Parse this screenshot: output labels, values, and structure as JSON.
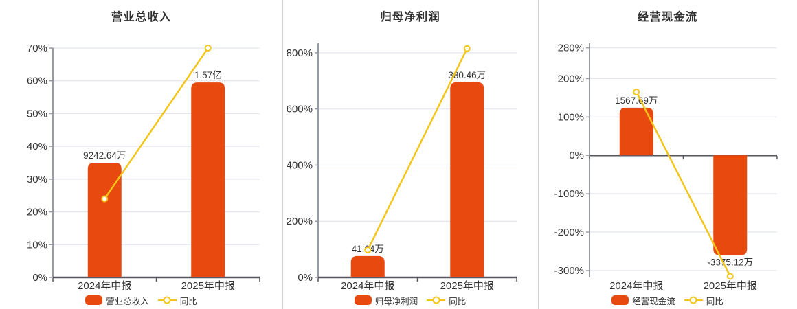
{
  "colors": {
    "bar": "#e8490f",
    "line": "#f3c51a",
    "grid": "#e2e6f1",
    "axis_light": "#9a9ca5",
    "axis_dark": "#55565e",
    "text": "#333333",
    "divider": "#d0d0d0",
    "marker_fill": "#ffffff"
  },
  "chart_data": [
    {
      "type": "bar+line",
      "title": "营业总收入",
      "x_axis": {
        "categories": [
          "2024年中报",
          "2025年中报"
        ]
      },
      "y_axis": {
        "unit": "%",
        "scale_min": 0,
        "scale_max": 70,
        "ticks": [
          {
            "v": 70,
            "label": "70%"
          },
          {
            "v": 60,
            "label": "60%"
          },
          {
            "v": 50,
            "label": "50%"
          },
          {
            "v": 40,
            "label": "40%"
          },
          {
            "v": 30,
            "label": "30%"
          },
          {
            "v": 20,
            "label": "20%"
          },
          {
            "v": 10,
            "label": "10%"
          },
          {
            "v": 0,
            "label": "0%"
          }
        ]
      },
      "bar_series": {
        "name": "营业总收入",
        "labels": [
          "9242.64万",
          "1.57亿"
        ],
        "heights_pct": [
          35,
          59.5
        ]
      },
      "line_series": {
        "name": "同比",
        "values_pct": [
          24,
          70
        ]
      }
    },
    {
      "type": "bar+line",
      "title": "归母净利润",
      "x_axis": {
        "categories": [
          "2024年中报",
          "2025年中报"
        ]
      },
      "y_axis": {
        "unit": "%",
        "scale_min": 0,
        "scale_max": 834,
        "ticks": [
          {
            "v": 800,
            "label": "800%"
          },
          {
            "v": 600,
            "label": "600%"
          },
          {
            "v": 400,
            "label": "400%"
          },
          {
            "v": 200,
            "label": "200%"
          },
          {
            "v": 0,
            "label": "0%"
          }
        ]
      },
      "bar_series": {
        "name": "归母净利润",
        "labels": [
          "41.64万",
          "380.46万"
        ],
        "heights_pct": [
          76,
          695
        ]
      },
      "line_series": {
        "name": "同比",
        "values_pct": [
          98,
          815
        ]
      }
    },
    {
      "type": "bar+line",
      "title": "经营现金流",
      "x_axis": {
        "categories": [
          "2024年中报",
          "2025年中报"
        ]
      },
      "y_axis": {
        "unit": "%",
        "scale_min": -318,
        "scale_max": 292,
        "ticks": [
          {
            "v": 280,
            "label": "280%"
          },
          {
            "v": 200,
            "label": "200%"
          },
          {
            "v": 100,
            "label": "100%"
          },
          {
            "v": 0,
            "label": "0%"
          },
          {
            "v": -100,
            "label": "-100%"
          },
          {
            "v": -200,
            "label": "-200%"
          },
          {
            "v": -300,
            "label": "-300%"
          }
        ]
      },
      "bar_series": {
        "name": "经营现金流",
        "labels": [
          "1567.69万",
          "-3375.12万"
        ],
        "heights_pct": [
          124,
          -260
        ]
      },
      "line_series": {
        "name": "同比",
        "values_pct": [
          165,
          -315
        ]
      }
    }
  ]
}
